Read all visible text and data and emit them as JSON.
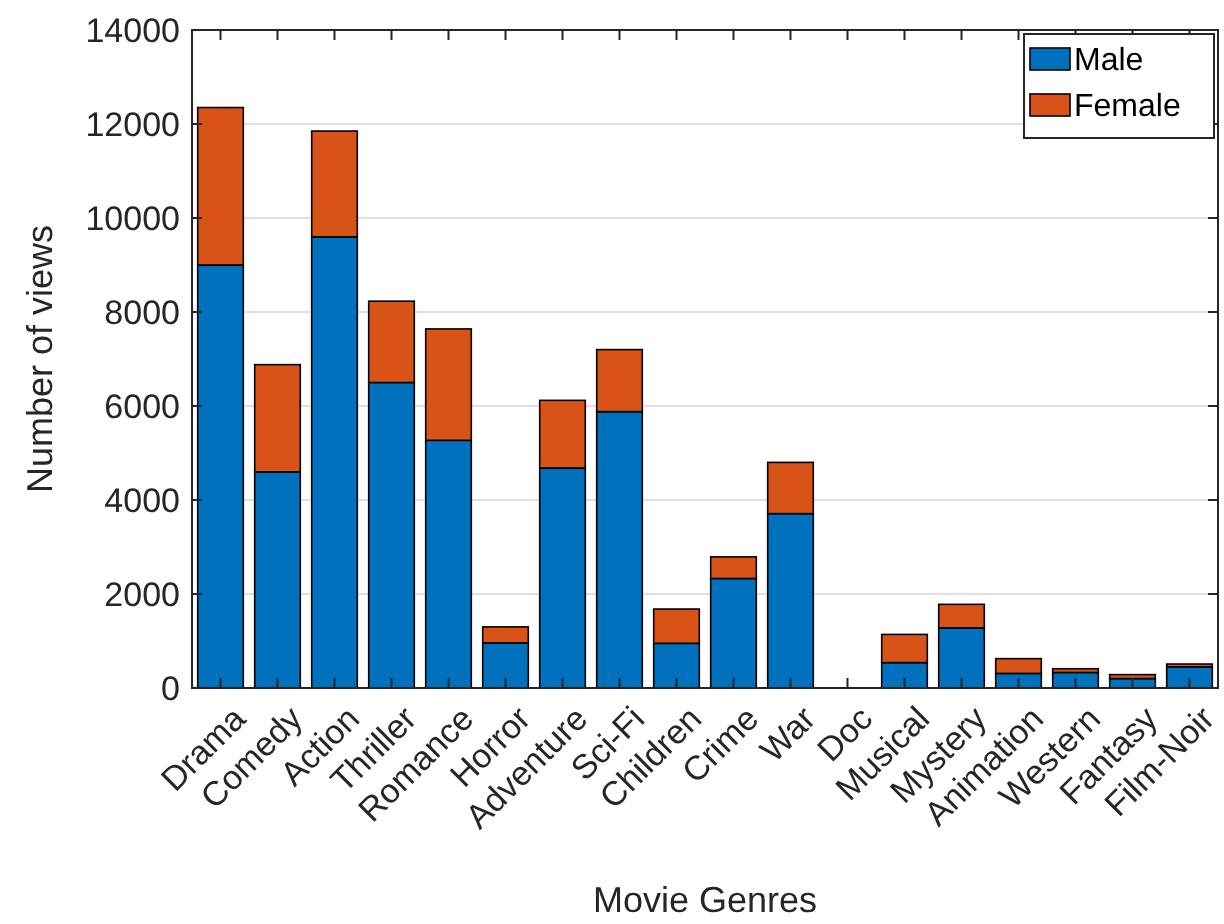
{
  "chart_data": {
    "type": "bar",
    "stacked": true,
    "xlabel": "Movie Genres",
    "ylabel": "Number of views",
    "categories": [
      "Drama",
      "Comedy",
      "Action",
      "Thriller",
      "Romance",
      "Horror",
      "Adventure",
      "Sci-Fi",
      "Children",
      "Crime",
      "War",
      "Doc",
      "Musical",
      "Mystery",
      "Animation",
      "Western",
      "Fantasy",
      "Film-Noir"
    ],
    "series": [
      {
        "name": "Male",
        "color": "#0072bd",
        "values": [
          9000,
          4600,
          9600,
          6500,
          5270,
          960,
          4680,
          5880,
          950,
          2330,
          3710,
          0,
          540,
          1280,
          310,
          330,
          200,
          450
        ]
      },
      {
        "name": "Female",
        "color": "#d95319",
        "values": [
          3350,
          2280,
          2250,
          1730,
          2370,
          340,
          1440,
          1320,
          730,
          460,
          1090,
          0,
          600,
          500,
          315,
          80,
          85,
          60
        ]
      }
    ],
    "ylim": [
      0,
      14000
    ],
    "yticks": [
      0,
      2000,
      4000,
      6000,
      8000,
      10000,
      12000,
      14000
    ],
    "grid": "y",
    "legend": "top right"
  }
}
